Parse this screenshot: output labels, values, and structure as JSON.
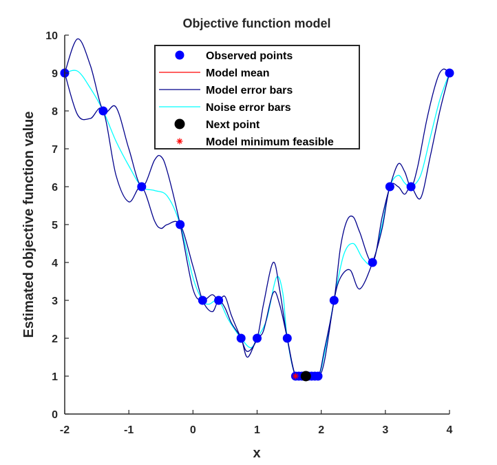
{
  "chart_data": {
    "type": "line",
    "title": "Objective function model",
    "xlabel": "x",
    "ylabel": "Estimated objective function value",
    "xlim": [
      -2,
      4
    ],
    "ylim": [
      0,
      10
    ],
    "x_ticks": [
      "-2",
      "-1",
      "0",
      "1",
      "2",
      "3",
      "4"
    ],
    "y_ticks": [
      "0",
      "1",
      "2",
      "3",
      "4",
      "5",
      "6",
      "7",
      "8",
      "9",
      "10"
    ],
    "grid": false,
    "legend_position": "top-center",
    "legend": [
      {
        "label": "Observed points",
        "marker": "filled-circle",
        "color": "#0000ff"
      },
      {
        "label": "Model mean",
        "marker": "line",
        "color": "#ff0000"
      },
      {
        "label": "Model error bars",
        "marker": "line",
        "color": "#00008b"
      },
      {
        "label": "Noise error bars",
        "marker": "line",
        "color": "#00ffff"
      },
      {
        "label": "Next point",
        "marker": "filled-circle",
        "color": "#000000"
      },
      {
        "label": "Model minimum feasible",
        "marker": "asterisk",
        "color": "#ff0000"
      }
    ],
    "observed_points": {
      "x": [
        -2,
        -1.4,
        -0.8,
        -0.2,
        0.15,
        0.4,
        0.75,
        1.0,
        1.47,
        1.6,
        1.65,
        1.7,
        1.75,
        1.8,
        1.85,
        1.9,
        1.95,
        2.2,
        2.8,
        3.07,
        3.4,
        4.0
      ],
      "y": [
        9,
        8,
        6,
        5,
        3,
        3,
        2,
        2,
        2,
        1,
        1,
        1,
        1,
        1,
        1,
        1,
        1,
        3,
        4,
        6,
        6,
        9
      ]
    },
    "next_point": {
      "x": 1.76,
      "y": 1.0
    },
    "model_minimum_feasible": {
      "x": 1.6,
      "y": 1.0
    },
    "series": [
      {
        "name": "Noise error bars",
        "color": "#00ffff",
        "x": [
          -2,
          -1.8,
          -1.6,
          -1.4,
          -1.2,
          -1.0,
          -0.8,
          -0.6,
          -0.4,
          -0.2,
          0.0,
          0.15,
          0.25,
          0.4,
          0.55,
          0.75,
          0.9,
          1.0,
          1.15,
          1.3,
          1.4,
          1.47,
          1.6,
          1.75,
          1.95,
          2.05,
          2.2,
          2.35,
          2.5,
          2.65,
          2.8,
          2.95,
          3.07,
          3.2,
          3.3,
          3.4,
          3.55,
          3.7,
          3.85,
          4.0
        ],
        "y": [
          9.0,
          9.05,
          8.6,
          8.0,
          7.2,
          6.55,
          6.0,
          5.9,
          5.75,
          5.0,
          3.6,
          3.0,
          2.9,
          3.0,
          2.5,
          2.0,
          1.75,
          2.0,
          2.5,
          3.6,
          3.2,
          2.0,
          1.0,
          1.0,
          1.0,
          1.6,
          3.0,
          4.2,
          4.5,
          4.1,
          4.0,
          5.0,
          6.0,
          6.3,
          6.1,
          6.0,
          6.3,
          7.3,
          8.3,
          9.0
        ]
      },
      {
        "name": "Model error bars",
        "color": "#00008b",
        "x": [
          -2,
          -1.8,
          -1.6,
          -1.4,
          -1.2,
          -1.0,
          -0.8,
          -0.6,
          -0.5,
          -0.4,
          -0.2,
          0.0,
          0.15,
          0.3,
          0.4,
          0.5,
          0.6,
          0.75,
          0.85,
          1.0,
          1.1,
          1.25,
          1.35,
          1.47,
          1.6,
          1.75,
          1.95,
          2.05,
          2.2,
          2.3,
          2.4,
          2.5,
          2.6,
          2.8,
          2.95,
          3.07,
          3.2,
          3.3,
          3.4,
          3.5,
          3.65,
          3.8,
          3.9,
          4.0
        ],
        "y": [
          9.0,
          9.9,
          9.2,
          8.0,
          8.1,
          7.0,
          6.0,
          6.7,
          6.8,
          6.4,
          5.0,
          3.3,
          3.0,
          3.15,
          3.0,
          3.1,
          2.6,
          2.0,
          1.65,
          2.0,
          2.9,
          4.0,
          3.3,
          2.0,
          1.0,
          1.0,
          1.0,
          1.7,
          3.0,
          4.4,
          5.1,
          5.2,
          4.8,
          4.0,
          5.2,
          6.0,
          6.6,
          6.4,
          6.0,
          6.5,
          7.8,
          8.8,
          9.1,
          9.0
        ]
      },
      {
        "name": "Model error bars",
        "color": "#00008b",
        "x": [
          -2,
          -1.8,
          -1.6,
          -1.4,
          -1.2,
          -1.0,
          -0.8,
          -0.6,
          -0.5,
          -0.4,
          -0.2,
          0.0,
          0.15,
          0.3,
          0.4,
          0.5,
          0.6,
          0.75,
          0.85,
          1.0,
          1.1,
          1.25,
          1.35,
          1.47,
          1.6,
          1.75,
          1.95,
          2.05,
          2.2,
          2.3,
          2.45,
          2.6,
          2.8,
          2.95,
          3.07,
          3.2,
          3.3,
          3.4,
          3.55,
          3.7,
          3.85,
          4.0
        ],
        "y": [
          9.0,
          7.9,
          7.8,
          8.0,
          6.3,
          5.6,
          6.0,
          5.1,
          4.9,
          5.0,
          5.0,
          3.9,
          3.0,
          2.7,
          3.0,
          2.8,
          2.4,
          2.0,
          1.5,
          2.0,
          2.2,
          3.2,
          2.9,
          2.0,
          1.0,
          1.0,
          1.0,
          1.4,
          3.0,
          3.6,
          3.8,
          3.3,
          4.0,
          4.9,
          6.0,
          6.0,
          5.8,
          6.0,
          5.7,
          6.8,
          8.0,
          9.0
        ]
      },
      {
        "name": "Model mean",
        "color": "#ff0000",
        "x": [
          1.6,
          1.95
        ],
        "y": [
          1.0,
          1.0
        ]
      }
    ]
  }
}
